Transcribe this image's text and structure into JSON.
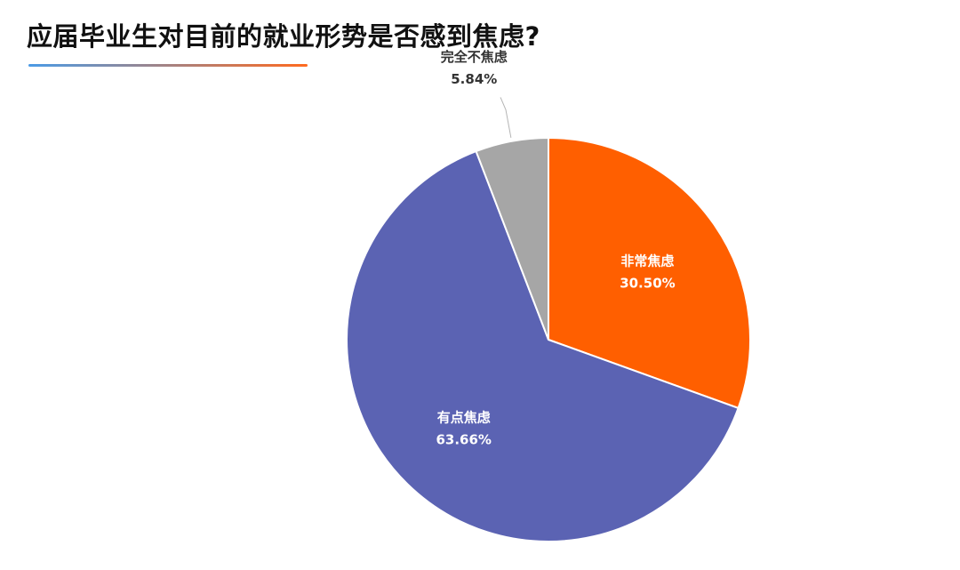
{
  "title": "应届毕业生对目前的就业形势是否感到焦虑?",
  "colors": {
    "underline_start": "#4b9be6",
    "underline_end": "#ff6a1f"
  },
  "chart_data": {
    "type": "pie",
    "title": "应届毕业生对目前的就业形势是否感到焦虑?",
    "slices": [
      {
        "label": "非常焦虑",
        "value": 30.5,
        "value_label": "30.50%",
        "color": "#ff5f00",
        "label_position": "inside"
      },
      {
        "label": "有点焦虑",
        "value": 63.66,
        "value_label": "63.66%",
        "color": "#5b63b3",
        "label_position": "inside"
      },
      {
        "label": "完全不焦虑",
        "value": 5.84,
        "value_label": "5.84%",
        "color": "#a6a6a6",
        "label_position": "outside"
      }
    ],
    "start_angle": "12 o'clock",
    "direction": "clockwise",
    "legend": "none"
  }
}
